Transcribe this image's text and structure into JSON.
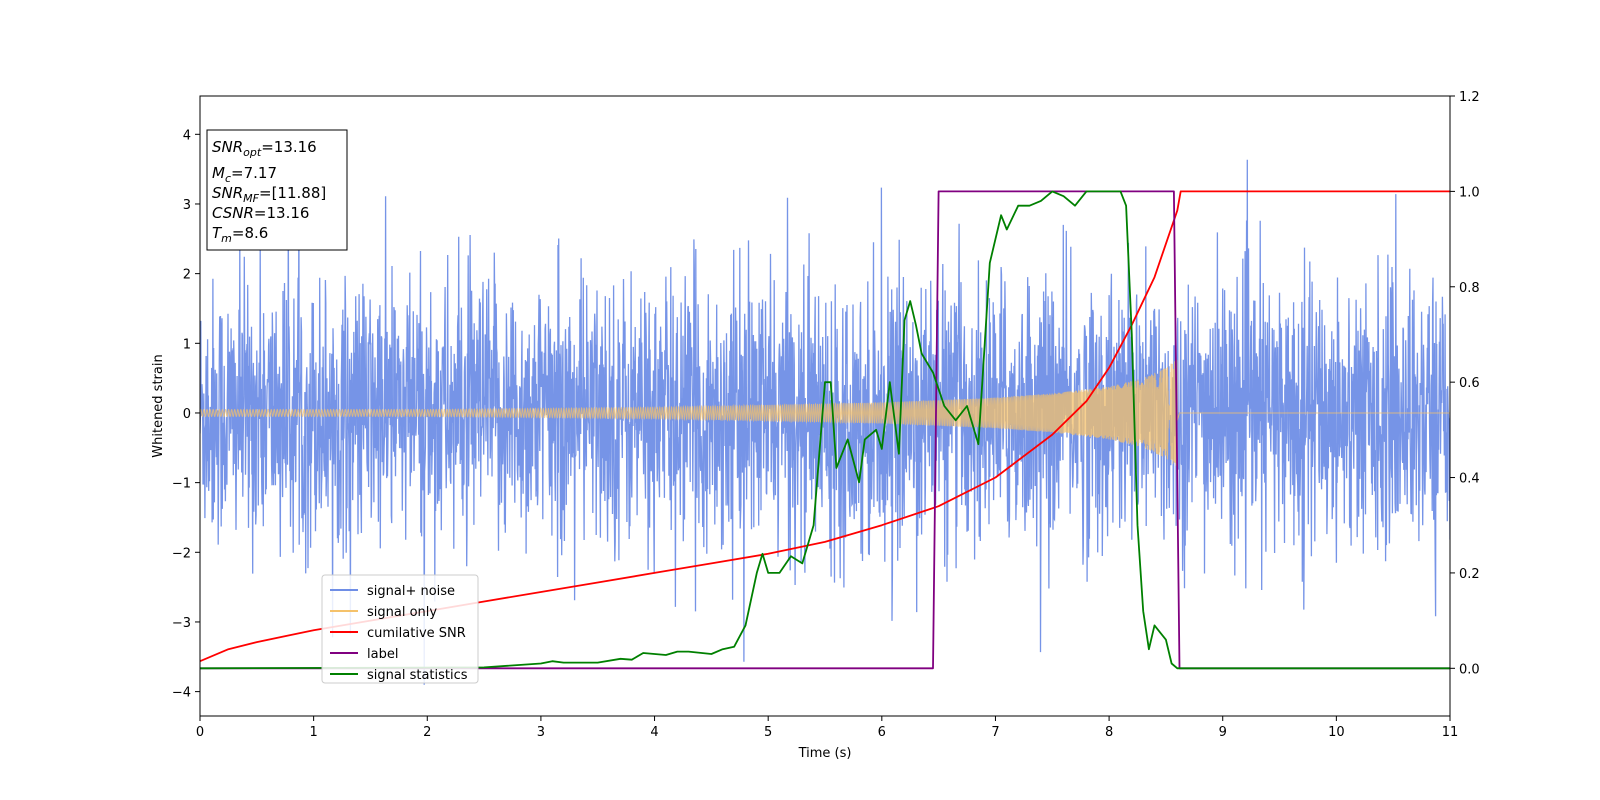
{
  "chart_data": {
    "type": "line",
    "xlabel": "Time (s)",
    "ylabel": "Whitened strain",
    "xlim": [
      0,
      11
    ],
    "ylim": [
      -4.35,
      4.55
    ],
    "y2lim": [
      -0.1,
      1.2
    ],
    "x_ticks": [
      "0",
      "1",
      "2",
      "3",
      "4",
      "5",
      "6",
      "7",
      "8",
      "9",
      "10",
      "11"
    ],
    "y_ticks": [
      "−4",
      "−3",
      "−2",
      "−1",
      "0",
      "1",
      "2",
      "3",
      "4"
    ],
    "y2_ticks": [
      "0.0",
      "0.2",
      "0.4",
      "0.6",
      "0.8",
      "1.0",
      "1.2"
    ],
    "legend_position": "lower-left",
    "legend": [
      {
        "label": "signal+ noise",
        "color": "#6f8ee6"
      },
      {
        "label": "signal only",
        "color": "#f5c26b"
      },
      {
        "label": "cumilative SNR",
        "color": "#ff0000"
      },
      {
        "label": "label",
        "color": "#800080"
      },
      {
        "label": "signal statistics",
        "color": "#008000"
      }
    ],
    "annotation": {
      "snr_opt": {
        "name": "SNR",
        "sub": "opt",
        "value": "=13.16"
      },
      "mc": {
        "name": "M",
        "sub": "c",
        "value": "=7.17"
      },
      "snr_mf": {
        "name": "SNR",
        "sub": "MF",
        "value": "=[11.88]"
      },
      "csnr": {
        "name": "CSNR",
        "value": "=13.16"
      },
      "tm": {
        "name": "T",
        "sub": "m",
        "value": "=8.6"
      }
    },
    "series": [
      {
        "name": "signal+ noise",
        "axis": "left",
        "color": "#6f8ee6",
        "description": "dense noise, amplitude about ±2.5 with spikes to about ±4",
        "envelope": [
          2.5,
          -2.5
        ]
      },
      {
        "name": "signal only",
        "axis": "left",
        "color": "#f5c26b",
        "chirp_start": 0,
        "chirp_end": 8.6,
        "amplitude_points": [
          [
            0,
            0.05
          ],
          [
            2,
            0.05
          ],
          [
            4,
            0.08
          ],
          [
            6,
            0.15
          ],
          [
            7,
            0.22
          ],
          [
            7.5,
            0.28
          ],
          [
            8,
            0.38
          ],
          [
            8.3,
            0.5
          ],
          [
            8.5,
            0.65
          ],
          [
            8.6,
            0.78
          ]
        ]
      },
      {
        "name": "cumilative SNR",
        "axis": "right",
        "color": "#ff0000",
        "x": [
          0,
          0.25,
          0.5,
          1,
          1.5,
          2,
          2.5,
          3,
          3.5,
          4,
          4.5,
          5,
          5.5,
          6,
          6.5,
          7,
          7.5,
          7.8,
          8,
          8.2,
          8.4,
          8.5,
          8.6,
          8.63,
          11
        ],
        "y": [
          0.015,
          0.04,
          0.055,
          0.08,
          0.1,
          0.12,
          0.14,
          0.16,
          0.18,
          0.2,
          0.22,
          0.24,
          0.265,
          0.3,
          0.34,
          0.4,
          0.49,
          0.56,
          0.63,
          0.72,
          0.82,
          0.89,
          0.96,
          1.0,
          1.0
        ]
      },
      {
        "name": "label",
        "axis": "right",
        "color": "#800080",
        "x": [
          0,
          6.45,
          6.5,
          8.57,
          8.62,
          11
        ],
        "y": [
          0,
          0,
          1,
          1,
          0,
          0
        ]
      },
      {
        "name": "signal statistics",
        "axis": "right",
        "color": "#008000",
        "x": [
          0,
          2.5,
          3,
          3.1,
          3.2,
          3.5,
          3.7,
          3.8,
          3.9,
          4.0,
          4.1,
          4.2,
          4.3,
          4.5,
          4.6,
          4.7,
          4.8,
          4.9,
          4.95,
          5.0,
          5.1,
          5.2,
          5.3,
          5.4,
          5.5,
          5.55,
          5.6,
          5.7,
          5.8,
          5.85,
          5.95,
          6.0,
          6.07,
          6.15,
          6.2,
          6.25,
          6.3,
          6.35,
          6.45,
          6.55,
          6.65,
          6.75,
          6.85,
          6.95,
          7.05,
          7.1,
          7.2,
          7.3,
          7.4,
          7.5,
          7.6,
          7.7,
          7.8,
          8.0,
          8.1,
          8.15,
          8.2,
          8.25,
          8.3,
          8.35,
          8.4,
          8.5,
          8.55,
          8.6,
          11
        ],
        "y": [
          0,
          0.002,
          0.01,
          0.015,
          0.012,
          0.012,
          0.02,
          0.018,
          0.032,
          0.03,
          0.028,
          0.035,
          0.035,
          0.03,
          0.04,
          0.045,
          0.09,
          0.2,
          0.24,
          0.2,
          0.2,
          0.235,
          0.22,
          0.3,
          0.6,
          0.6,
          0.42,
          0.48,
          0.39,
          0.48,
          0.5,
          0.46,
          0.6,
          0.45,
          0.73,
          0.77,
          0.72,
          0.66,
          0.62,
          0.55,
          0.52,
          0.55,
          0.47,
          0.85,
          0.95,
          0.92,
          0.97,
          0.97,
          0.98,
          1.0,
          0.99,
          0.97,
          1.0,
          1.0,
          1.0,
          0.97,
          0.7,
          0.3,
          0.12,
          0.04,
          0.09,
          0.06,
          0.01,
          0.0,
          0.0
        ]
      }
    ]
  }
}
